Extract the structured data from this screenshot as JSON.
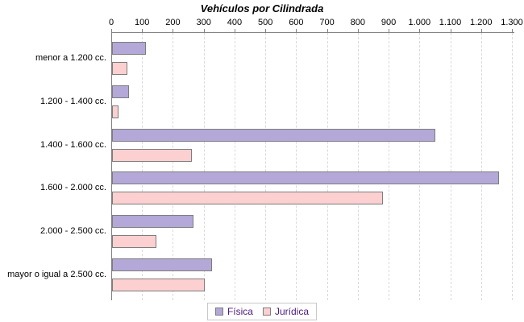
{
  "chart_data": {
    "type": "bar",
    "orientation": "horizontal",
    "title": "Vehículos por Cilindrada",
    "categories": [
      "menor a 1.200 cc.",
      "1.200 - 1.400 cc.",
      "1.400 - 1.600 cc.",
      "1.600 - 2.000 cc.",
      "2.000 - 2.500 cc.",
      "mayor o igual a 2.500 cc."
    ],
    "series": [
      {
        "name": "Física",
        "color": "#b3a8d8",
        "values": [
          110,
          55,
          1050,
          1255,
          265,
          325
        ]
      },
      {
        "name": "Jurídica",
        "color": "#fcd0d0",
        "values": [
          50,
          20,
          260,
          880,
          145,
          300
        ]
      }
    ],
    "xlabel": "",
    "ylabel": "",
    "xlim": [
      0,
      1300
    ],
    "x_ticks": [
      0,
      100,
      200,
      300,
      400,
      500,
      600,
      700,
      800,
      900,
      1000,
      1100,
      1200,
      1300
    ],
    "x_tick_labels": [
      "0",
      "100",
      "200",
      "300",
      "400",
      "500",
      "600",
      "700",
      "800",
      "900",
      "1.000",
      "1.100",
      "1.200",
      "1.300"
    ],
    "grid": "vertical-dashed",
    "legend_position": "bottom-center",
    "colors": {
      "bar_border": "#7d7d7d",
      "axis": "#808080",
      "gridline": "#dadada",
      "title_text": "#000000",
      "tick_text": "#000000",
      "category_text": "#000000",
      "legend_text": "#4a1a7e",
      "legend_border": "#c8c8c8",
      "background": "#ffffff"
    }
  }
}
